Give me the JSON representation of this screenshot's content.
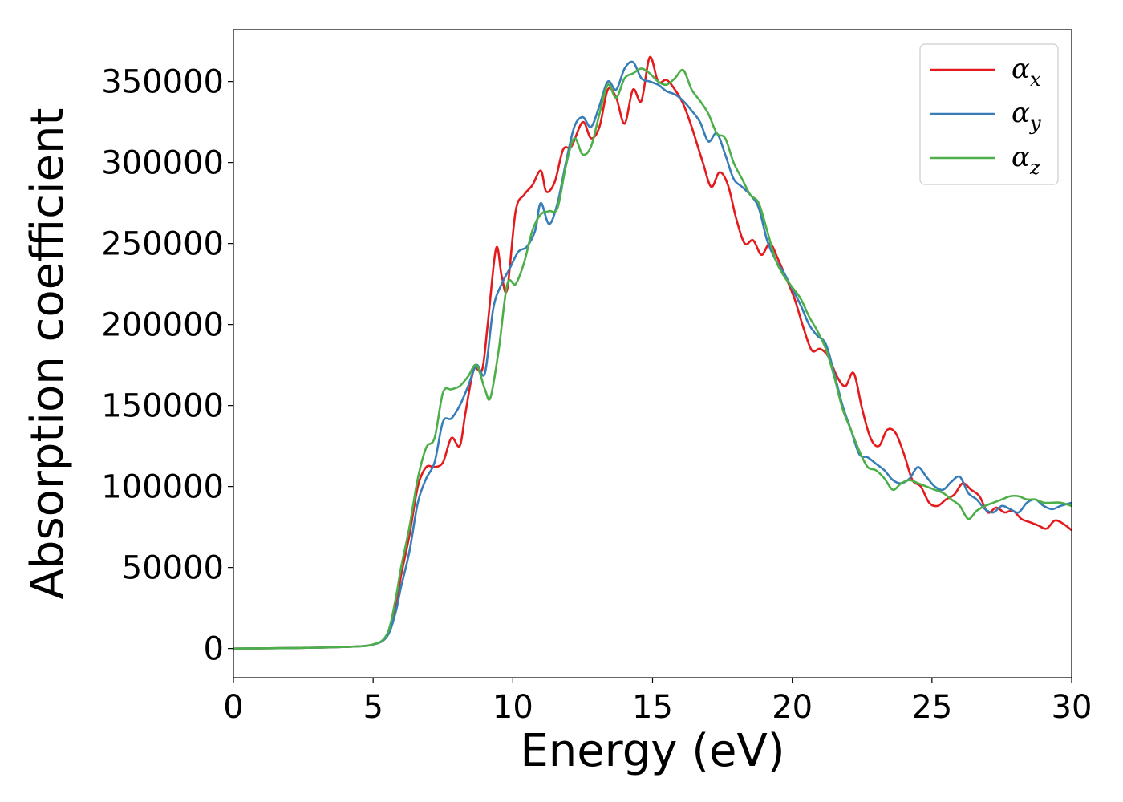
{
  "chart_data": {
    "type": "line",
    "xlabel": "Energy (eV)",
    "ylabel": "Absorption coefficient",
    "xlim": [
      0,
      30
    ],
    "ylim": [
      -18000,
      382000
    ],
    "xticks": [
      "0",
      "5",
      "10",
      "15",
      "20",
      "25",
      "30"
    ],
    "yticks": [
      "0",
      "50000",
      "100000",
      "150000",
      "200000",
      "250000",
      "300000",
      "350000"
    ],
    "grid": false,
    "legend": {
      "placement": "top-right",
      "entries": [
        {
          "symbol": "α",
          "sub": "x",
          "color": "#e41a1c"
        },
        {
          "symbol": "α",
          "sub": "y",
          "color": "#377eb8"
        },
        {
          "symbol": "α",
          "sub": "z",
          "color": "#4daf4a"
        }
      ]
    },
    "series": [
      {
        "name": "αx",
        "color": "#e41a1c",
        "x": [
          0,
          2,
          4,
          5,
          5.5,
          5.8,
          6.0,
          6.3,
          6.6,
          6.9,
          7.2,
          7.5,
          7.8,
          8.1,
          8.3,
          8.6,
          8.9,
          9.1,
          9.4,
          9.6,
          9.8,
          10.1,
          10.4,
          10.7,
          11.0,
          11.2,
          11.5,
          11.8,
          12.1,
          12.5,
          12.8,
          13.1,
          13.4,
          13.7,
          14.0,
          14.3,
          14.6,
          14.9,
          15.2,
          15.5,
          15.8,
          16.1,
          16.4,
          16.8,
          17.1,
          17.4,
          17.7,
          18.0,
          18.3,
          18.6,
          18.9,
          19.2,
          19.5,
          19.8,
          20.1,
          20.4,
          20.7,
          21.0,
          21.3,
          21.6,
          21.9,
          22.2,
          22.5,
          22.8,
          23.1,
          23.4,
          23.7,
          24.0,
          24.3,
          24.6,
          24.9,
          25.2,
          25.5,
          25.8,
          26.1,
          26.4,
          26.7,
          27.0,
          27.3,
          27.6,
          27.9,
          28.2,
          28.5,
          28.8,
          29.1,
          29.4,
          29.7,
          30
        ],
        "y": [
          0,
          300,
          1000,
          2500,
          8000,
          25000,
          45000,
          70000,
          100000,
          112000,
          112000,
          115000,
          130000,
          125000,
          145000,
          172000,
          172000,
          200000,
          247000,
          230000,
          222000,
          270000,
          280000,
          286000,
          295000,
          282000,
          288000,
          308000,
          310000,
          325000,
          315000,
          322000,
          345000,
          340000,
          324000,
          345000,
          338000,
          365000,
          350000,
          351000,
          345000,
          336000,
          322000,
          300000,
          285000,
          294000,
          286000,
          265000,
          250000,
          252000,
          243000,
          250000,
          240000,
          228000,
          215000,
          198000,
          184000,
          185000,
          180000,
          168000,
          162000,
          170000,
          148000,
          130000,
          125000,
          135000,
          133000,
          120000,
          104000,
          100000,
          90000,
          88000,
          92000,
          95000,
          102000,
          98000,
          94000,
          84000,
          87000,
          84000,
          85000,
          80000,
          78000,
          76000,
          74000,
          79000,
          77000,
          73000
        ]
      },
      {
        "name": "αy",
        "color": "#377eb8",
        "x": [
          0,
          2,
          4,
          5,
          5.5,
          5.8,
          6.0,
          6.3,
          6.6,
          6.9,
          7.2,
          7.5,
          7.8,
          8.1,
          8.4,
          8.7,
          9.0,
          9.3,
          9.6,
          9.9,
          10.2,
          10.5,
          10.8,
          11.0,
          11.3,
          11.6,
          11.9,
          12.2,
          12.5,
          12.8,
          13.1,
          13.4,
          13.7,
          14.0,
          14.3,
          14.6,
          14.9,
          15.2,
          15.5,
          15.8,
          16.1,
          16.4,
          16.7,
          17.0,
          17.3,
          17.6,
          17.9,
          18.2,
          18.5,
          18.8,
          19.1,
          19.4,
          19.7,
          20.0,
          20.3,
          20.6,
          20.9,
          21.2,
          21.5,
          21.8,
          22.1,
          22.4,
          22.7,
          23.0,
          23.3,
          23.6,
          23.9,
          24.2,
          24.5,
          24.8,
          25.1,
          25.4,
          25.7,
          26.0,
          26.3,
          26.6,
          26.9,
          27.2,
          27.5,
          27.8,
          28.1,
          28.4,
          28.7,
          29.0,
          29.3,
          29.6,
          30
        ],
        "y": [
          0,
          300,
          1000,
          2500,
          7500,
          22000,
          38000,
          60000,
          90000,
          105000,
          115000,
          140000,
          142000,
          150000,
          162000,
          175000,
          170000,
          210000,
          225000,
          235000,
          245000,
          248000,
          258000,
          275000,
          262000,
          275000,
          300000,
          322000,
          328000,
          322000,
          335000,
          350000,
          345000,
          358000,
          362000,
          352000,
          350000,
          348000,
          344000,
          342000,
          338000,
          332000,
          325000,
          313000,
          318000,
          305000,
          290000,
          285000,
          280000,
          272000,
          252000,
          240000,
          232000,
          222000,
          212000,
          200000,
          193000,
          188000,
          170000,
          150000,
          135000,
          120000,
          118000,
          114000,
          110000,
          104000,
          102000,
          105000,
          112000,
          106000,
          100000,
          98000,
          103000,
          106000,
          96000,
          92000,
          86000,
          84000,
          88000,
          86000,
          84000,
          90000,
          92000,
          88000,
          86000,
          88000,
          90000
        ]
      },
      {
        "name": "αz",
        "color": "#4daf4a",
        "x": [
          0,
          2,
          4,
          5,
          5.5,
          5.8,
          6.0,
          6.3,
          6.6,
          6.9,
          7.2,
          7.5,
          7.8,
          8.1,
          8.4,
          8.7,
          9.0,
          9.2,
          9.5,
          9.8,
          10.1,
          10.4,
          10.7,
          11.0,
          11.3,
          11.6,
          11.9,
          12.2,
          12.5,
          12.8,
          13.1,
          13.4,
          13.7,
          14.0,
          14.3,
          14.6,
          14.9,
          15.2,
          15.5,
          15.8,
          16.1,
          16.4,
          16.7,
          17.0,
          17.3,
          17.6,
          17.9,
          18.2,
          18.5,
          18.8,
          19.1,
          19.4,
          19.7,
          20.0,
          20.3,
          20.6,
          20.9,
          21.2,
          21.5,
          21.8,
          22.1,
          22.4,
          22.7,
          23.0,
          23.3,
          23.6,
          23.9,
          24.2,
          24.5,
          24.8,
          25.1,
          25.4,
          25.7,
          26.0,
          26.3,
          26.6,
          26.9,
          27.2,
          27.5,
          27.8,
          28.1,
          28.4,
          28.7,
          29.0,
          29.3,
          29.6,
          30
        ],
        "y": [
          0,
          300,
          1000,
          2500,
          9000,
          30000,
          50000,
          75000,
          105000,
          124000,
          130000,
          158000,
          160000,
          162000,
          168000,
          175000,
          160000,
          155000,
          185000,
          225000,
          225000,
          238000,
          258000,
          268000,
          270000,
          272000,
          298000,
          315000,
          305000,
          310000,
          330000,
          348000,
          340000,
          352000,
          355000,
          358000,
          355000,
          350000,
          348000,
          352000,
          357000,
          345000,
          338000,
          330000,
          318000,
          315000,
          300000,
          290000,
          280000,
          275000,
          258000,
          240000,
          230000,
          223000,
          216000,
          205000,
          196000,
          185000,
          168000,
          148000,
          135000,
          122000,
          112000,
          110000,
          105000,
          98000,
          102000,
          104000,
          102000,
          100000,
          98000,
          96000,
          92000,
          88000,
          80000,
          85000,
          88000,
          90000,
          92000,
          94000,
          94000,
          92000,
          92000,
          90000,
          90000,
          90000,
          88000
        ]
      }
    ]
  }
}
